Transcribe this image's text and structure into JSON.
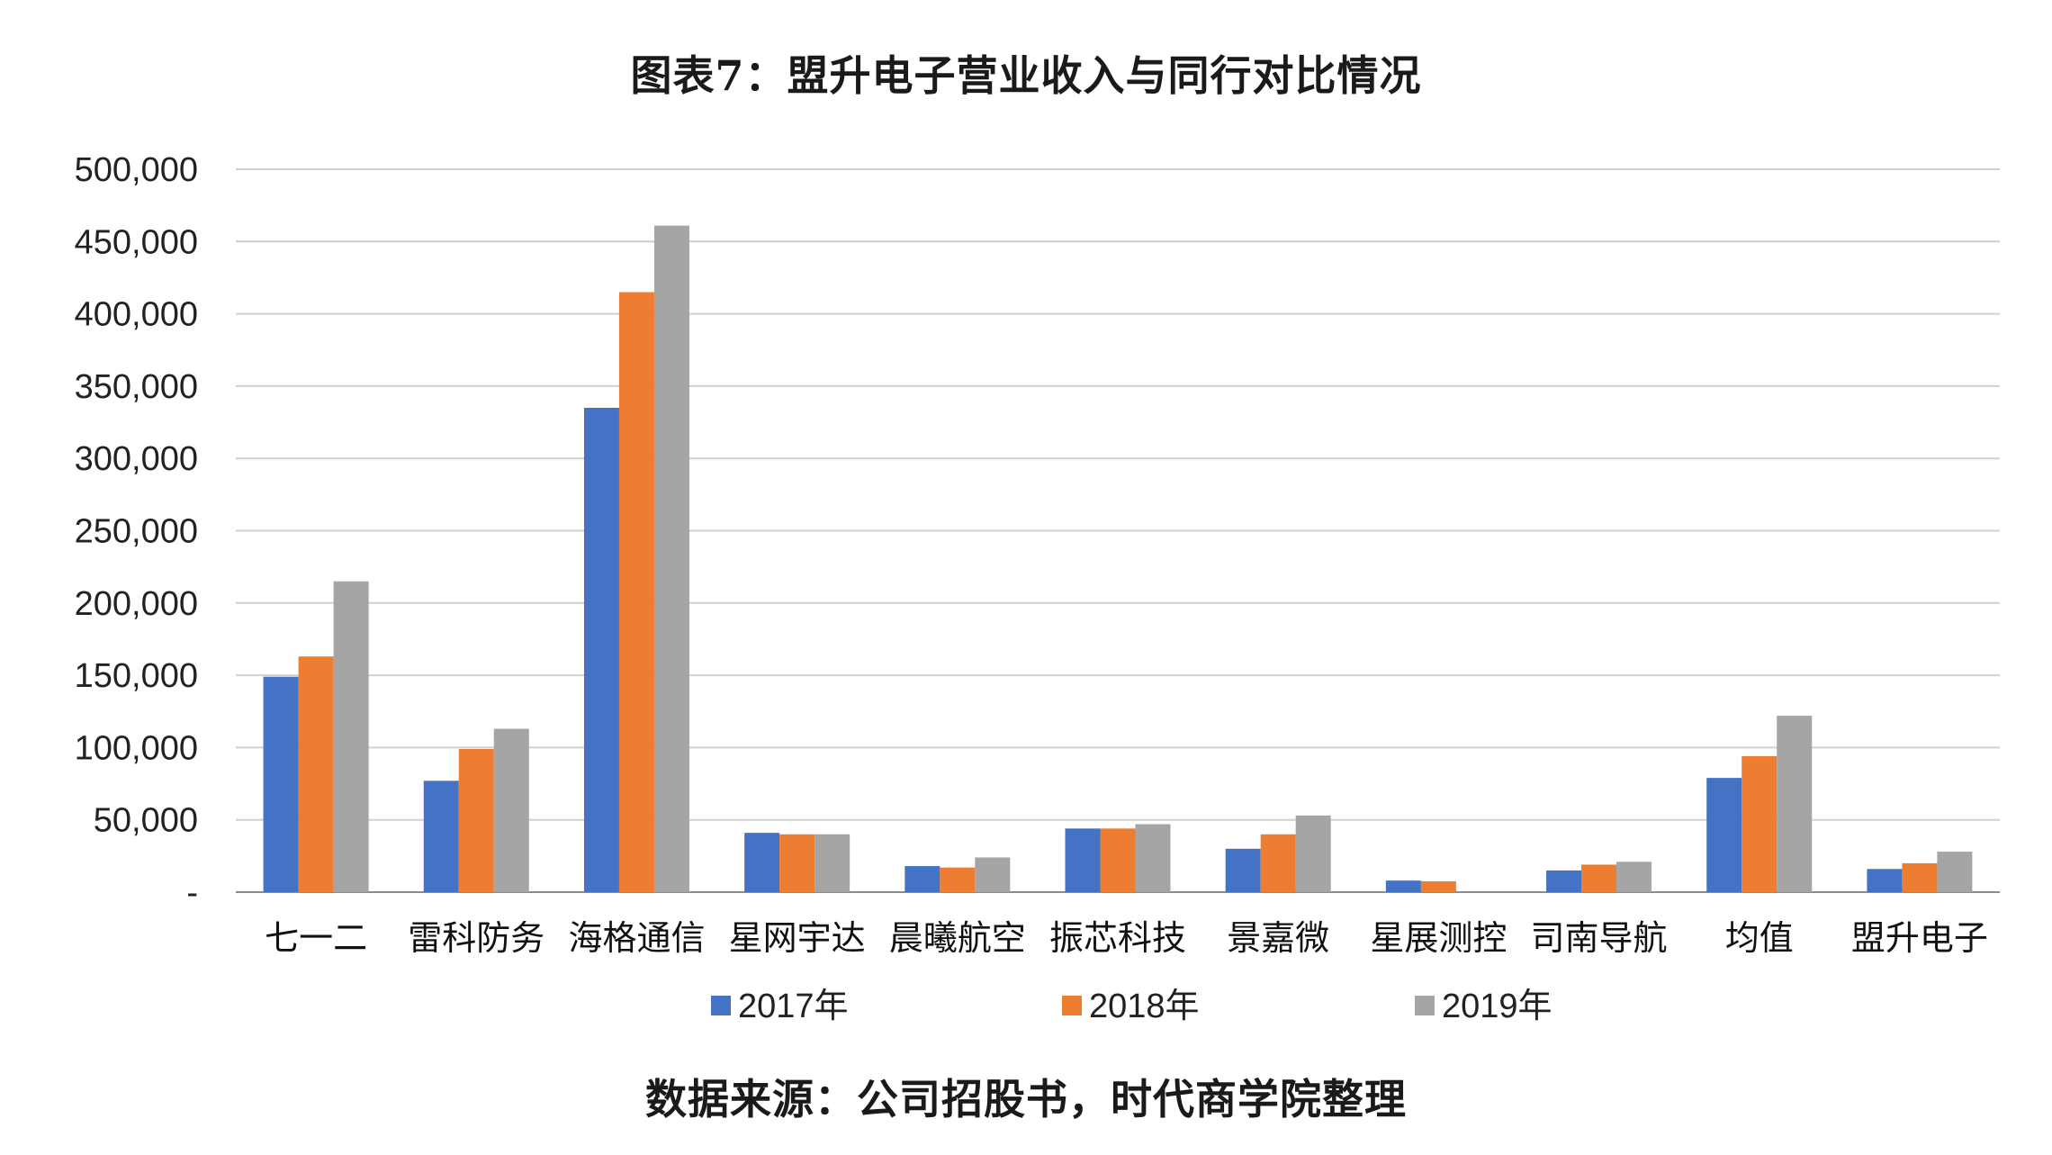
{
  "title": "图表7：盟升电子营业收入与同行对比情况",
  "source": "数据来源：公司招股书，时代商学院整理",
  "chart_data": {
    "type": "bar",
    "categories": [
      "七一二",
      "雷科防务",
      "海格通信",
      "星网宇达",
      "晨曦航空",
      "振芯科技",
      "景嘉微",
      "星展测控",
      "司南导航",
      "均值",
      "盟升电子"
    ],
    "series": [
      {
        "name": "2017年",
        "color": "#4472C4",
        "values": [
          149000,
          77000,
          335000,
          41000,
          18000,
          44000,
          30000,
          8000,
          15000,
          79000,
          16000
        ]
      },
      {
        "name": "2018年",
        "color": "#ED7D31",
        "values": [
          163000,
          99000,
          415000,
          40000,
          17000,
          44000,
          40000,
          7500,
          19000,
          94000,
          20000
        ]
      },
      {
        "name": "2019年",
        "color": "#A5A5A5",
        "values": [
          215000,
          113000,
          461000,
          40000,
          24000,
          47000,
          53000,
          0,
          21000,
          122000,
          28000
        ]
      }
    ],
    "yticks": [
      "-",
      "50,000",
      "100,000",
      "150,000",
      "200,000",
      "250,000",
      "300,000",
      "350,000",
      "400,000",
      "450,000",
      "500,000"
    ],
    "ylim": [
      0,
      500000
    ],
    "grid": true,
    "legend": "bottom"
  }
}
